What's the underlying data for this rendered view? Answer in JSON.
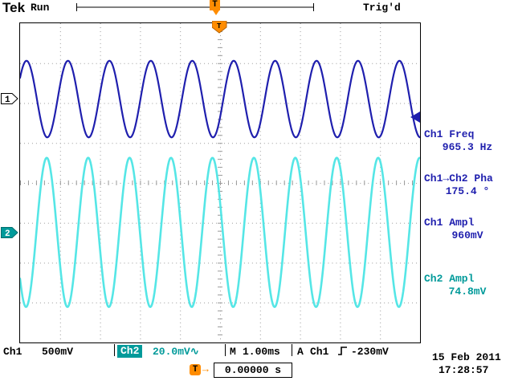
{
  "colors": {
    "ch1": "#1f1fae",
    "ch2_trace": "#55e6e6",
    "ch2_ui": "#009a9a",
    "orange": "#ff8c00",
    "grid": "#999999",
    "black": "#000000"
  },
  "top_bar": {
    "logo": "Tek",
    "acq_status": "Run",
    "trig_status": "Trig'd",
    "trigger_icon": "T"
  },
  "graticule": {
    "ch1_marker": "1",
    "ch2_marker": "2",
    "trigger_top_icon": "T"
  },
  "measurements": [
    {
      "label": "Ch1 Freq",
      "value": "965.3 Hz",
      "color_key": "ch1"
    },
    {
      "label": "Ch1→Ch2 Pha",
      "value": "175.4 °",
      "color_key": "ch1"
    },
    {
      "label": "Ch1 Ampl",
      "value": "960mV",
      "color_key": "ch1"
    },
    {
      "label": "Ch2 Ampl",
      "value": "74.8mV",
      "color_key": "ch2_ui"
    }
  ],
  "bottom_bar": {
    "ch1_label": "Ch1",
    "ch1_scale": "500mV",
    "ch2_label": "Ch2",
    "ch2_scale": "20.0mV",
    "ch2_coupling_icon": "∿",
    "timebase_label": "M",
    "timebase_value": "1.00ms",
    "trigger_group_label": "A",
    "trigger_source": "Ch1",
    "trigger_level": "-230mV",
    "date": "15 Feb 2011",
    "time": "17:28:57"
  },
  "trigger_position": {
    "icon": "T",
    "arrow": "→",
    "value": "0.00000 s"
  },
  "chart_data": {
    "type": "line",
    "title": "Oscilloscope dual-channel sine traces",
    "x_axis": {
      "divisions": 10,
      "time_per_div": "1.00ms",
      "time_per_div_ms": 1.0
    },
    "y_axis": {
      "divisions": 8
    },
    "grid": "dotted, center axes with 0.2-div tick marks",
    "trigger": {
      "source": "Ch1",
      "level_mv": -230,
      "slope": "rising",
      "position_div_from_left": 5,
      "position_time": "0.00000 s"
    },
    "series": [
      {
        "name": "Ch1",
        "frequency_hz": 965.3,
        "amplitude_mv_pp": 960,
        "scale_mv_per_div": 500,
        "vertical_center_div_from_top": 1.9,
        "phase_deg_at_trigger": -28.6,
        "color_key": "ch1",
        "stroke_width": 2.2
      },
      {
        "name": "Ch2",
        "frequency_hz": 965.3,
        "amplitude_mv_pp": 74.8,
        "scale_mv_per_div": 20,
        "vertical_center_div_from_top": 5.24,
        "phase_deg_at_trigger": -204.0,
        "color_key": "ch2_trace",
        "stroke_width": 2.6
      }
    ],
    "phase_ch1_to_ch2_deg": 175.4
  }
}
